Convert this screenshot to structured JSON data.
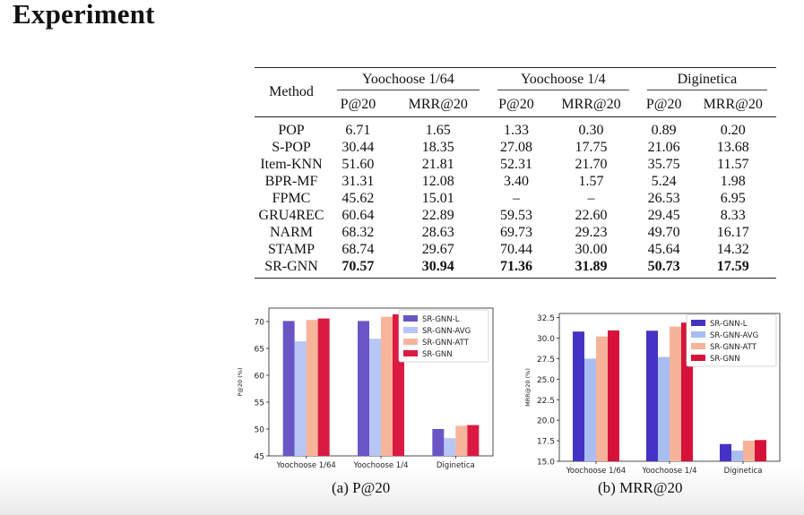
{
  "slide_title": "Experiment",
  "table": {
    "method_header": "Method",
    "groups": [
      "Yoochoose 1/64",
      "Yoochoose 1/4",
      "Diginetica"
    ],
    "metrics": [
      "P@20",
      "MRR@20",
      "P@20",
      "MRR@20",
      "P@20",
      "MRR@20"
    ],
    "rows": [
      {
        "method": "POP",
        "values": [
          "6.71",
          "1.65",
          "1.33",
          "0.30",
          "0.89",
          "0.20"
        ]
      },
      {
        "method": "S-POP",
        "values": [
          "30.44",
          "18.35",
          "27.08",
          "17.75",
          "21.06",
          "13.68"
        ]
      },
      {
        "method": "Item-KNN",
        "values": [
          "51.60",
          "21.81",
          "52.31",
          "21.70",
          "35.75",
          "11.57"
        ]
      },
      {
        "method": "BPR-MF",
        "values": [
          "31.31",
          "12.08",
          "3.40",
          "1.57",
          "5.24",
          "1.98"
        ]
      },
      {
        "method": "FPMC",
        "values": [
          "45.62",
          "15.01",
          "–",
          "–",
          "26.53",
          "6.95"
        ]
      },
      {
        "method": "GRU4REC",
        "values": [
          "60.64",
          "22.89",
          "59.53",
          "22.60",
          "29.45",
          "8.33"
        ]
      },
      {
        "method": "NARM",
        "values": [
          "68.32",
          "28.63",
          "69.73",
          "29.23",
          "49.70",
          "16.17"
        ]
      },
      {
        "method": "STAMP",
        "values": [
          "68.74",
          "29.67",
          "70.44",
          "30.00",
          "45.64",
          "14.32"
        ]
      },
      {
        "method": "SR-GNN",
        "values": [
          "70.57",
          "30.94",
          "71.36",
          "31.89",
          "50.73",
          "17.59"
        ],
        "bold": true
      }
    ]
  },
  "chart_data": [
    {
      "type": "bar",
      "caption": "(a) P@20",
      "ylabel": "P@20 (%)",
      "categories": [
        "Yoochoose 1/64",
        "Yoochoose 1/4",
        "Diginetica"
      ],
      "ylim": [
        45,
        72.5
      ],
      "yticks": [
        45,
        50,
        55,
        60,
        65,
        70
      ],
      "series": [
        {
          "name": "SR-GNN-L",
          "color": "#6a55c6",
          "values": [
            70.1,
            70.1,
            50.0
          ]
        },
        {
          "name": "SR-GNN-AVG",
          "color": "#b7c6f4",
          "values": [
            66.3,
            66.8,
            48.3
          ]
        },
        {
          "name": "SR-GNN-ATT",
          "color": "#f6b59b",
          "values": [
            70.3,
            70.9,
            50.6
          ]
        },
        {
          "name": "SR-GNN",
          "color": "#db1a44",
          "values": [
            70.57,
            71.36,
            50.73
          ]
        }
      ],
      "legend": "top-right",
      "grid": false
    },
    {
      "type": "bar",
      "caption": "(b) MRR@20",
      "ylabel": "MRR@20 (%)",
      "categories": [
        "Yoochoose 1/64",
        "Yoochoose 1/4",
        "Diginetica"
      ],
      "ylim": [
        15,
        33
      ],
      "yticks": [
        15.0,
        17.5,
        20.0,
        22.5,
        25.0,
        27.5,
        30.0,
        32.5
      ],
      "series": [
        {
          "name": "SR-GNN-L",
          "color": "#4433c4",
          "values": [
            30.8,
            30.9,
            17.1
          ]
        },
        {
          "name": "SR-GNN-AVG",
          "color": "#a9bdf3",
          "values": [
            27.5,
            27.7,
            16.3
          ]
        },
        {
          "name": "SR-GNN-ATT",
          "color": "#f6b39a",
          "values": [
            30.2,
            31.4,
            17.5
          ]
        },
        {
          "name": "SR-GNN",
          "color": "#d6123a",
          "values": [
            30.94,
            31.89,
            17.59
          ]
        }
      ],
      "legend": "top-right",
      "grid": false
    }
  ]
}
